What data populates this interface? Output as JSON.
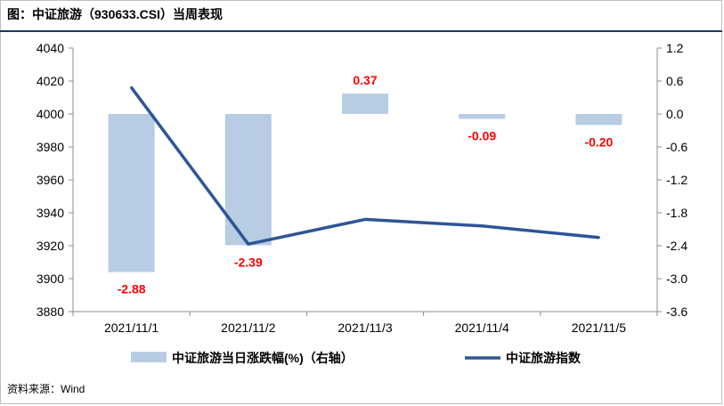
{
  "title": "图：中证旅游（930633.CSI）当周表现",
  "source": "资料来源：Wind",
  "chart_data": {
    "type": "bar+line",
    "categories": [
      "2021/11/1",
      "2021/11/2",
      "2021/11/3",
      "2021/11/4",
      "2021/11/5"
    ],
    "series": [
      {
        "name": "中证旅游当日涨跌幅(%)（右轴）",
        "type": "bar",
        "axis": "right",
        "values": [
          -2.88,
          -2.39,
          0.37,
          -0.09,
          -0.2
        ],
        "color": "#b8cce4",
        "label_color": "#ff0000"
      },
      {
        "name": "中证旅游指数",
        "type": "line",
        "axis": "left",
        "values": [
          4016,
          3921,
          3936,
          3932,
          3925
        ],
        "color": "#2f5597"
      }
    ],
    "y_left": {
      "min": 3880,
      "max": 4040,
      "ticks": [
        3880,
        3900,
        3920,
        3940,
        3960,
        3980,
        4000,
        4020,
        4040
      ]
    },
    "y_right": {
      "min": -3.6,
      "max": 1.2,
      "ticks": [
        "1.2",
        "0.6",
        "0.0",
        "-0.6",
        "-1.2",
        "-1.8",
        "-2.4",
        "-3.0",
        "-3.6"
      ]
    },
    "legend_position": "bottom",
    "grid": false
  }
}
